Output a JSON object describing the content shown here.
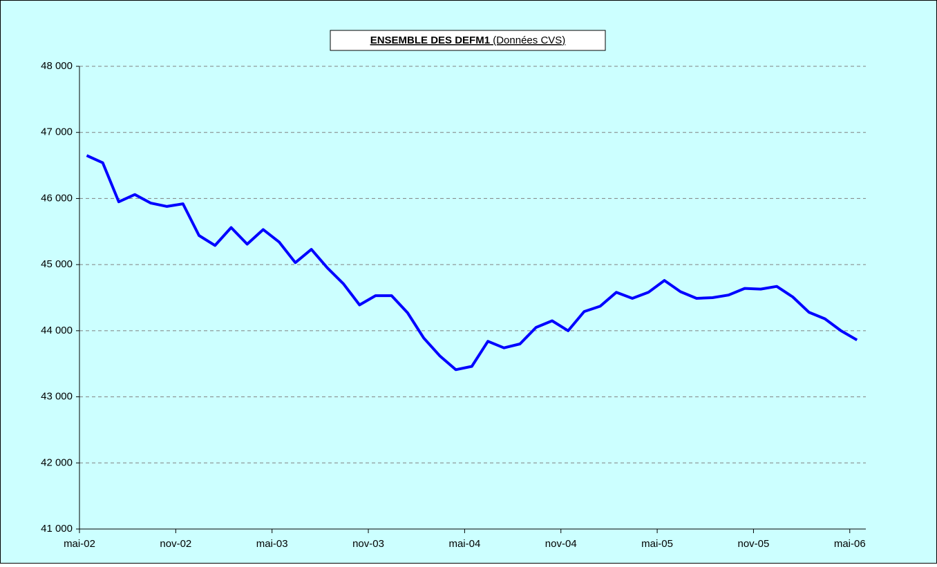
{
  "chart_data": {
    "type": "line",
    "title": "ENSEMBLE DES DEFM1",
    "subtitle": "(Données CVS)",
    "categories": [
      "mai-02",
      null,
      null,
      null,
      null,
      null,
      "nov-02",
      null,
      null,
      null,
      null,
      null,
      "mai-03",
      null,
      null,
      null,
      null,
      null,
      "nov-03",
      null,
      null,
      null,
      null,
      null,
      "mai-04",
      null,
      null,
      null,
      null,
      null,
      "nov-04",
      null,
      null,
      null,
      null,
      null,
      "mai-05",
      null,
      null,
      null,
      null,
      null,
      "nov-05",
      null,
      null,
      null,
      null,
      null,
      "mai-06"
    ],
    "series": [
      {
        "name": "ENSEMBLE DES DEFM1",
        "color": "#0000ff",
        "values": [
          46650,
          46540,
          45950,
          46060,
          45930,
          45880,
          45920,
          45440,
          45290,
          45560,
          45310,
          45530,
          45340,
          45030,
          45230,
          44950,
          44710,
          44390,
          44530,
          44530,
          44270,
          43890,
          43620,
          43410,
          43460,
          43840,
          43740,
          43800,
          44050,
          44150,
          44000,
          44290,
          44370,
          44580,
          44490,
          44580,
          44760,
          44590,
          44490,
          44500,
          44540,
          44640,
          44630,
          44670,
          44510,
          44280,
          44180,
          44000,
          43860
        ]
      }
    ],
    "ylim": [
      41000,
      48000
    ],
    "yticks": [
      {
        "value": 41000,
        "label": "41 000"
      },
      {
        "value": 42000,
        "label": "42 000"
      },
      {
        "value": 43000,
        "label": "43 000"
      },
      {
        "value": 44000,
        "label": "44 000"
      },
      {
        "value": 45000,
        "label": "45 000"
      },
      {
        "value": 46000,
        "label": "46 000"
      },
      {
        "value": 47000,
        "label": "47 000"
      },
      {
        "value": 48000,
        "label": "48 000"
      }
    ],
    "grid": true,
    "background": "#ccffff"
  }
}
